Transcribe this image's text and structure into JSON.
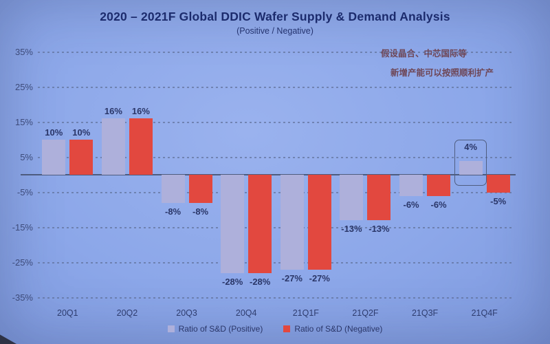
{
  "annotation": {
    "line1": "假设晶合、中芯国际等",
    "line2": "新增产能可以按照顺利扩产"
  },
  "colors": {
    "background": "#8ca7e9",
    "title_text": "#1c2b6d",
    "positive_bar": "#aeb0db",
    "negative_bar": "#e2483f",
    "gridline": "#5c6c92",
    "zero_axis": "#4d5b7e",
    "data_label": "#2a3668",
    "annotation_text": "#6e4656"
  },
  "chart_data": {
    "type": "bar",
    "title": "2020 – 2021F Global DDIC Wafer Supply & Demand Analysis",
    "subtitle": "(Positive / Negative)",
    "categories": [
      "20Q1",
      "20Q2",
      "20Q3",
      "20Q4",
      "21Q1F",
      "21Q2F",
      "21Q3F",
      "21Q4F"
    ],
    "series": [
      {
        "name": "Ratio of S&D (Positive)",
        "color": "#aeb0db",
        "values": [
          10,
          16,
          -8,
          -28,
          -27,
          -13,
          -6,
          4
        ]
      },
      {
        "name": "Ratio of S&D (Negative)",
        "color": "#e2483f",
        "values": [
          10,
          16,
          -8,
          -28,
          -27,
          -13,
          -6,
          -5
        ]
      }
    ],
    "data_labels": [
      [
        "10%",
        "10%"
      ],
      [
        "16%",
        "16%"
      ],
      [
        "-8%",
        "-8%"
      ],
      [
        "-28%",
        "-28%"
      ],
      [
        "-27%",
        "-27%"
      ],
      [
        "-13%",
        "-13%"
      ],
      [
        "-6%",
        "-6%"
      ],
      [
        "4%",
        "-5%"
      ]
    ],
    "ylabel": "",
    "xlabel": "",
    "ylim": [
      -35,
      35
    ],
    "ytick_labels": [
      "35%",
      "25%",
      "15%",
      "5%",
      "-5%",
      "-15%",
      "-25%",
      "-35%"
    ],
    "ytick_values": [
      35,
      25,
      15,
      5,
      -5,
      -15,
      -25,
      -35
    ],
    "grid": "horizontal-dotted",
    "legend_position": "bottom",
    "highlight": {
      "series_index": 0,
      "category_index": 7,
      "label": "4%"
    }
  }
}
